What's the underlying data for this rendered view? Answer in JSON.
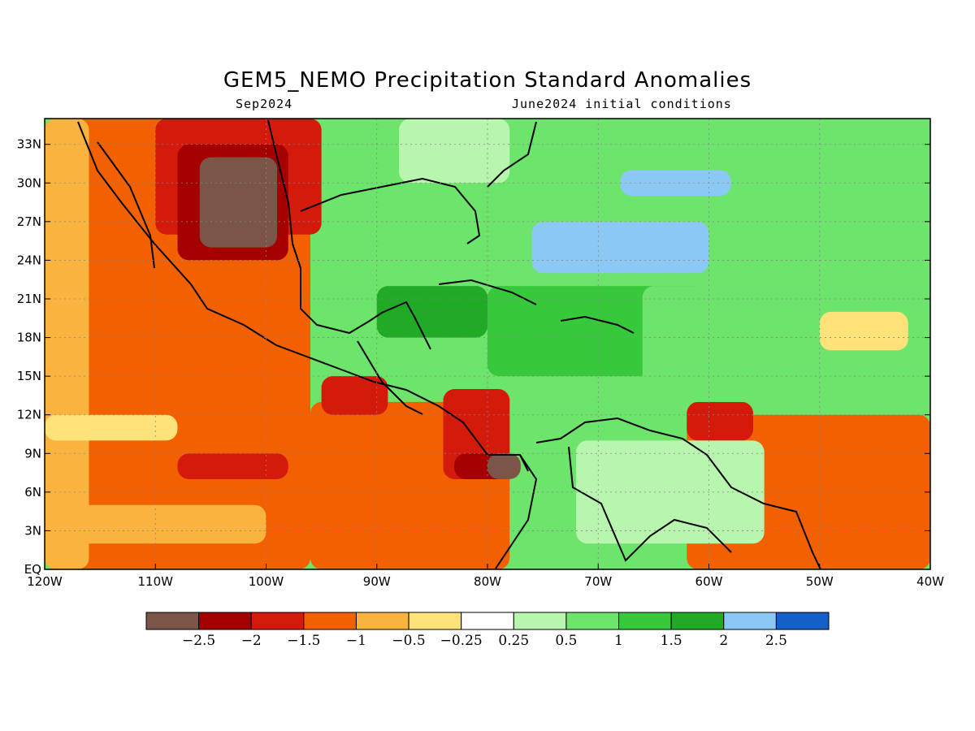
{
  "title": "GEM5_NEMO Precipitation Standard Anomalies",
  "subtitle_left": "Sep2024",
  "subtitle_right": "June2024 initial conditions",
  "map": {
    "lon_range": [
      -120,
      -40
    ],
    "lat_range": [
      0,
      35
    ],
    "lat_ticks": [
      {
        "value": 33,
        "label": "33N"
      },
      {
        "value": 30,
        "label": "30N"
      },
      {
        "value": 27,
        "label": "27N"
      },
      {
        "value": 24,
        "label": "24N"
      },
      {
        "value": 21,
        "label": "21N"
      },
      {
        "value": 18,
        "label": "18N"
      },
      {
        "value": 15,
        "label": "15N"
      },
      {
        "value": 12,
        "label": "12N"
      },
      {
        "value": 9,
        "label": "9N"
      },
      {
        "value": 6,
        "label": "6N"
      },
      {
        "value": 3,
        "label": "3N"
      },
      {
        "value": 0,
        "label": "EQ"
      }
    ],
    "lon_ticks": [
      {
        "value": -120,
        "label": "120W"
      },
      {
        "value": -110,
        "label": "110W"
      },
      {
        "value": -100,
        "label": "100W"
      },
      {
        "value": -90,
        "label": "90W"
      },
      {
        "value": -80,
        "label": "80W"
      },
      {
        "value": -70,
        "label": "70W"
      },
      {
        "value": -60,
        "label": "60W"
      },
      {
        "value": -50,
        "label": "50W"
      },
      {
        "value": -40,
        "label": "40W"
      }
    ],
    "anomaly_regions": [
      {
        "lon": [
          -120,
          -40
        ],
        "lat": [
          0,
          35
        ],
        "level": "1"
      },
      {
        "lon": [
          -120,
          -96
        ],
        "lat": [
          0,
          35
        ],
        "level": "-1"
      },
      {
        "lon": [
          -96,
          -78
        ],
        "lat": [
          0,
          13
        ],
        "level": "-1"
      },
      {
        "lon": [
          -110,
          -95
        ],
        "lat": [
          26,
          35
        ],
        "level": "-1.5"
      },
      {
        "lon": [
          -108,
          -98
        ],
        "lat": [
          24,
          33
        ],
        "level": "-2"
      },
      {
        "lon": [
          -106,
          -99
        ],
        "lat": [
          25,
          32
        ],
        "level": "-2.5"
      },
      {
        "lon": [
          -120,
          -116
        ],
        "lat": [
          0,
          35
        ],
        "level": "-0.5"
      },
      {
        "lon": [
          -120,
          -108
        ],
        "lat": [
          10,
          12
        ],
        "level": "-0.25"
      },
      {
        "lon": [
          -120,
          -100
        ],
        "lat": [
          2,
          5
        ],
        "level": "-0.5"
      },
      {
        "lon": [
          -108,
          -98
        ],
        "lat": [
          7,
          9
        ],
        "level": "-1.5"
      },
      {
        "lon": [
          -95,
          -89
        ],
        "lat": [
          12,
          15
        ],
        "level": "-1.5"
      },
      {
        "lon": [
          -84,
          -78
        ],
        "lat": [
          7,
          14
        ],
        "level": "-1.5"
      },
      {
        "lon": [
          -83,
          -78
        ],
        "lat": [
          7,
          9
        ],
        "level": "-2"
      },
      {
        "lon": [
          -80,
          -77
        ],
        "lat": [
          7,
          9
        ],
        "level": "-2.5"
      },
      {
        "lon": [
          -62,
          -40
        ],
        "lat": [
          0,
          12
        ],
        "level": "-1"
      },
      {
        "lon": [
          -62,
          -56
        ],
        "lat": [
          10,
          13
        ],
        "level": "-1.5"
      },
      {
        "lon": [
          -72,
          -55
        ],
        "lat": [
          2,
          10
        ],
        "level": "0.5"
      },
      {
        "lon": [
          -80,
          -60
        ],
        "lat": [
          15,
          22
        ],
        "level": "1.5"
      },
      {
        "lon": [
          -66,
          -40
        ],
        "lat": [
          13,
          22
        ],
        "level": "1"
      },
      {
        "lon": [
          -76,
          -60
        ],
        "lat": [
          23,
          27
        ],
        "level": "2.5"
      },
      {
        "lon": [
          -68,
          -58
        ],
        "lat": [
          29,
          31
        ],
        "level": "2.5"
      },
      {
        "lon": [
          -90,
          -80
        ],
        "lat": [
          18,
          22
        ],
        "level": "2"
      },
      {
        "lon": [
          -50,
          -42
        ],
        "lat": [
          17,
          20
        ],
        "level": "-0.25"
      },
      {
        "lon": [
          -88,
          -78
        ],
        "lat": [
          30,
          35
        ],
        "level": "0.5"
      }
    ]
  },
  "colorbar": {
    "colors": [
      "#7a5548",
      "#a50000",
      "#d31a0b",
      "#f26000",
      "#fbb340",
      "#fde37a",
      "#ffffff",
      "#b8f5ae",
      "#6de46b",
      "#37c83c",
      "#20aa26",
      "#8cc8f4",
      "#1560c8"
    ],
    "levels": [
      {
        "key": "-2.5",
        "color": "#7a5548"
      },
      {
        "key": "-2",
        "color": "#a50000"
      },
      {
        "key": "-1.5",
        "color": "#d31a0b"
      },
      {
        "key": "-1",
        "color": "#f26000"
      },
      {
        "key": "-0.5",
        "color": "#fbb340"
      },
      {
        "key": "-0.25",
        "color": "#fde37a"
      },
      {
        "key": "0.25",
        "color": "#ffffff"
      },
      {
        "key": "0.5",
        "color": "#b8f5ae"
      },
      {
        "key": "1",
        "color": "#6de46b"
      },
      {
        "key": "1.5",
        "color": "#37c83c"
      },
      {
        "key": "2",
        "color": "#20aa26"
      },
      {
        "key": "2.5",
        "color": "#8cc8f4"
      },
      {
        "key": "3",
        "color": "#1560c8"
      }
    ],
    "labels": [
      "−2.5",
      "−2",
      "−1.5",
      "−1",
      "−0.5",
      "−0.25",
      "0.25",
      "0.5",
      "1",
      "1.5",
      "2",
      "2.5"
    ]
  }
}
